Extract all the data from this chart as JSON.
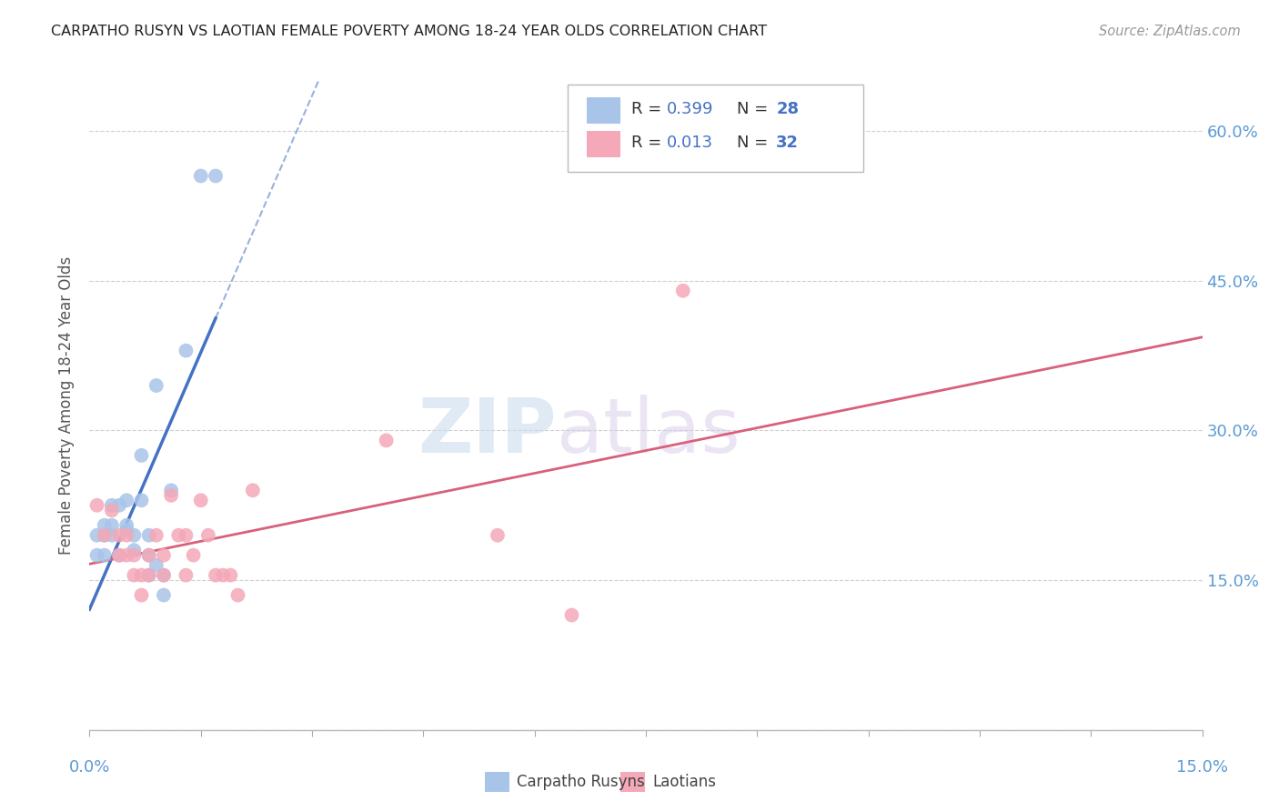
{
  "title": "CARPATHO RUSYN VS LAOTIAN FEMALE POVERTY AMONG 18-24 YEAR OLDS CORRELATION CHART",
  "source": "Source: ZipAtlas.com",
  "ylabel": "Female Poverty Among 18-24 Year Olds",
  "xlim": [
    0.0,
    0.15
  ],
  "ylim": [
    0.0,
    0.65
  ],
  "yticks": [
    0.0,
    0.15,
    0.3,
    0.45,
    0.6
  ],
  "ytick_labels": [
    "",
    "15.0%",
    "30.0%",
    "45.0%",
    "60.0%"
  ],
  "legend_label1": "Carpatho Rusyns",
  "legend_label2": "Laotians",
  "carpatho_color": "#a8c4e8",
  "laotian_color": "#f4a8b8",
  "trendline1_color": "#4472c4",
  "trendline2_color": "#d9607a",
  "carpatho_x": [
    0.001,
    0.001,
    0.002,
    0.002,
    0.002,
    0.003,
    0.003,
    0.003,
    0.004,
    0.004,
    0.005,
    0.005,
    0.005,
    0.006,
    0.006,
    0.007,
    0.007,
    0.008,
    0.008,
    0.008,
    0.009,
    0.009,
    0.01,
    0.01,
    0.011,
    0.013,
    0.015,
    0.017
  ],
  "carpatho_y": [
    0.195,
    0.175,
    0.205,
    0.195,
    0.175,
    0.205,
    0.195,
    0.225,
    0.225,
    0.175,
    0.23,
    0.2,
    0.205,
    0.195,
    0.18,
    0.275,
    0.23,
    0.195,
    0.175,
    0.155,
    0.345,
    0.165,
    0.155,
    0.135,
    0.24,
    0.38,
    0.555,
    0.555
  ],
  "laotian_x": [
    0.001,
    0.002,
    0.003,
    0.004,
    0.004,
    0.005,
    0.005,
    0.006,
    0.006,
    0.007,
    0.007,
    0.008,
    0.008,
    0.009,
    0.01,
    0.01,
    0.011,
    0.012,
    0.013,
    0.013,
    0.014,
    0.015,
    0.016,
    0.017,
    0.018,
    0.019,
    0.02,
    0.022,
    0.04,
    0.055,
    0.065,
    0.08
  ],
  "laotian_y": [
    0.225,
    0.195,
    0.22,
    0.175,
    0.195,
    0.195,
    0.175,
    0.175,
    0.155,
    0.155,
    0.135,
    0.175,
    0.155,
    0.195,
    0.155,
    0.175,
    0.235,
    0.195,
    0.155,
    0.195,
    0.175,
    0.23,
    0.195,
    0.155,
    0.155,
    0.155,
    0.135,
    0.24,
    0.29,
    0.195,
    0.115,
    0.44
  ],
  "r1": "0.399",
  "n1": "28",
  "r2": "0.013",
  "n2": "32"
}
